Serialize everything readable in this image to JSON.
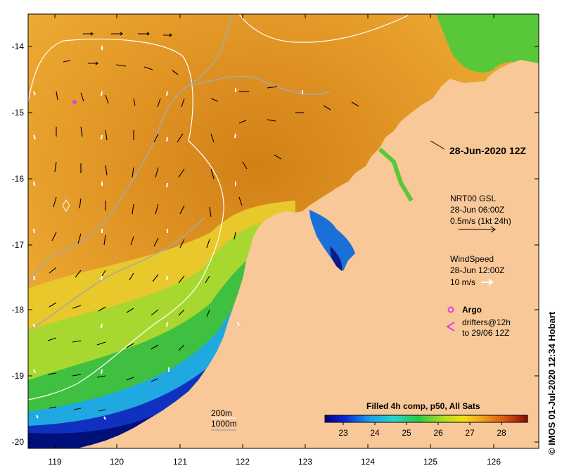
{
  "map": {
    "lon_ticks": [
      "119",
      "120",
      "121",
      "122",
      "123",
      "124",
      "125",
      "126"
    ],
    "lat_ticks": [
      "-14",
      "-15",
      "-16",
      "-17",
      "-18",
      "-19",
      "-20"
    ],
    "title": "28-Jun-2020 12Z"
  },
  "currents_legend": {
    "line1": "NRT00 GSL",
    "line2": "28-Jun 06:00Z",
    "line3": "0.5m/s (1kt 24h)"
  },
  "wind_legend": {
    "line1": "WindSpeed",
    "line2": "28-Jun 12:00Z",
    "line3": "10 m/s"
  },
  "argo_legend": {
    "label": "Argo",
    "line1": "drifters@12h",
    "line2": "to 29/06 12Z"
  },
  "isobaths": {
    "line1": "200m",
    "line2": "1000m"
  },
  "colorbar": {
    "title": "Filled 4h comp, p50, All Sats",
    "ticks": [
      "23",
      "24",
      "25",
      "26",
      "27",
      "28"
    ]
  },
  "credit": "© IMOS 01-Jul-2020 12:34 Hobart",
  "colors": {
    "land": "#f8c898",
    "sst_warm": "#d98a1c",
    "sst_cool": "#2a4fd8",
    "isobath_200": "#ffffff",
    "isobath_1000": "#a8a8a8",
    "argo": "#e040e0"
  }
}
